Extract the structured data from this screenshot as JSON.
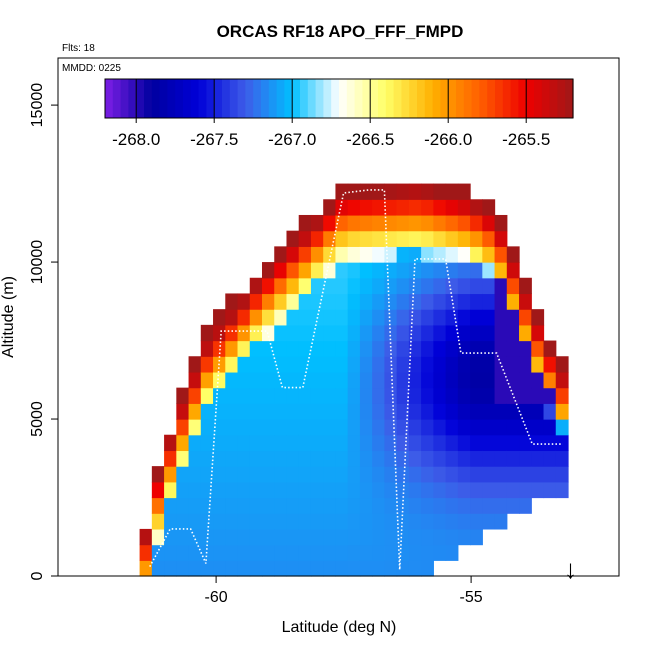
{
  "chart_data": {
    "type": "heatmap",
    "title": "ORCAS RF18 APO_FFF_FMPD",
    "flights_note": "Flts: 18",
    "date_note": "MMDD: 0225",
    "xlabel": "Latitude (deg N)",
    "ylabel": "Altitude (m)",
    "xlim": [
      -63.1,
      -52.1
    ],
    "ylim": [
      0,
      16500
    ],
    "x_ticks": [
      -60,
      -55
    ],
    "x_tick_labels": [
      "-60",
      "-55"
    ],
    "y_ticks": [
      0,
      5000,
      10000,
      15000
    ],
    "y_tick_labels": [
      "0",
      "5000",
      "10000",
      "15000"
    ],
    "colorbar": {
      "range": [
        -268.2,
        -265.2
      ],
      "ticks": [
        -268.0,
        -267.5,
        -267.0,
        -266.5,
        -266.0,
        -265.5
      ],
      "tick_labels": [
        "-268.0",
        "-267.5",
        "-267.0",
        "-266.5",
        "-266.0",
        "-265.5"
      ],
      "palette": [
        "#7d1fe6",
        "#00009f",
        "#0000d8",
        "#3d5ce8",
        "#00bfff",
        "#ffffff",
        "#ffff66",
        "#ffb000",
        "#ff6000",
        "#ee0000",
        "#a01818"
      ]
    },
    "field_description_lat_range": [
      -61.5,
      -53.2
    ],
    "flight_track_lat": [
      -61.3,
      -60.9,
      -60.5,
      -60.2,
      -59.9,
      -59.0,
      -58.7,
      -58.3,
      -57.5,
      -57.0,
      -56.7,
      -56.4,
      -56.1,
      -55.5,
      -55.2,
      -54.5,
      -53.8,
      -53.2
    ],
    "flight_track_alt": [
      300,
      1500,
      1500,
      400,
      7800,
      7800,
      6000,
      6000,
      12200,
      12300,
      12300,
      200,
      10100,
      10100,
      7100,
      7100,
      4200,
      4200
    ],
    "arrow_lat": -53.05,
    "arrow_label": "↓"
  }
}
